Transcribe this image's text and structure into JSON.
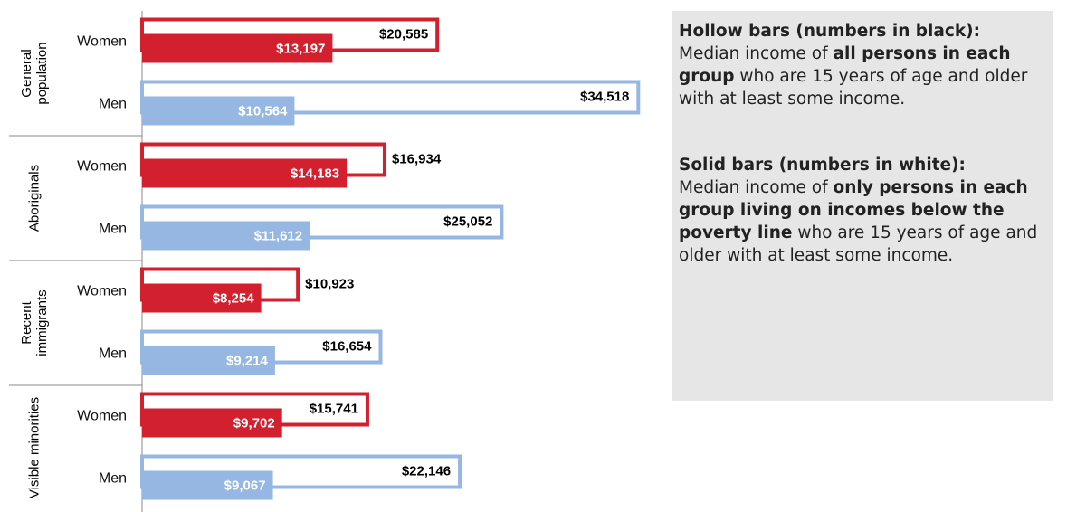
{
  "chart_data": {
    "type": "bar",
    "orientation": "horizontal",
    "groups": [
      "General population",
      "Aboriginals",
      "Recent immigrants",
      "Visible minorities"
    ],
    "categories": [
      "Women",
      "Men",
      "Women",
      "Men",
      "Women",
      "Men",
      "Women",
      "Men"
    ],
    "colors": [
      "#d2202f",
      "#95b7e1",
      "#d2202f",
      "#95b7e1",
      "#d2202f",
      "#95b7e1",
      "#d2202f",
      "#95b7e1"
    ],
    "xlim": [
      0,
      35000
    ],
    "series": [
      {
        "name": "Hollow bars (numbers in black):",
        "style": "hollow",
        "values": [
          20585,
          34518,
          16934,
          25052,
          10923,
          16654,
          15741,
          22146
        ],
        "value_labels": [
          "$20,585",
          "$34,518",
          "$16,934",
          "$25,052",
          "$10,923",
          "$16,654",
          "$15,741",
          "$22,146"
        ]
      },
      {
        "name": "Solid bars (numbers in white):",
        "style": "solid",
        "values": [
          13197,
          10564,
          14183,
          11612,
          8254,
          9214,
          9702,
          9067
        ],
        "value_labels": [
          "$13,197",
          "$10,564",
          "$14,183",
          "$11,612",
          "$8,254",
          "$9,214",
          "$9,702",
          "$9,067"
        ]
      }
    ],
    "notes": [
      [
        {
          "text": "Median income of ",
          "bold": false
        },
        {
          "text": "all persons in each group",
          "bold": true
        },
        {
          "text": " who are 15 years of age and older with at least some income.",
          "bold": false
        }
      ],
      [
        {
          "text": "Median income of ",
          "bold": false
        },
        {
          "text": "only persons in each group living on incomes below the poverty line",
          "bold": true
        },
        {
          "text": " who are 15 years of age and older with at least some income.",
          "bold": false
        }
      ]
    ]
  }
}
